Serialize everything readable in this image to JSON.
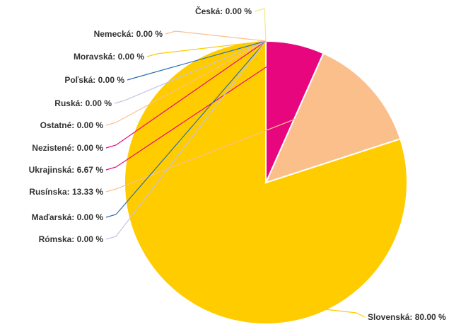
{
  "chart_data": {
    "type": "pie",
    "slices": [
      {
        "label": "Slovenská",
        "value": 80.0,
        "display": "Slovenská: 80.00 %",
        "color": "#FFCC00"
      },
      {
        "label": "Rusínska",
        "value": 13.33,
        "display": "Rusínska: 13.33 %",
        "color": "#FBBF8C"
      },
      {
        "label": "Ukrajinská",
        "value": 6.67,
        "display": "Ukrajinská: 6.67 %",
        "color": "#E8067E"
      },
      {
        "label": "Maďarská",
        "value": 0.0,
        "display": "Maďarská: 0.00 %",
        "color": "#2A6FB5"
      },
      {
        "label": "Rómska",
        "value": 0.0,
        "display": "Rómska: 0.00 %",
        "color": "#C7C2E3"
      },
      {
        "label": "Nezistené",
        "value": 0.0,
        "display": "Nezistené: 0.00 %",
        "color": "#E8067E"
      },
      {
        "label": "Ostatné",
        "value": 0.0,
        "display": "Ostatné: 0.00 %",
        "color": "#FBBF8C"
      },
      {
        "label": "Ruská",
        "value": 0.0,
        "display": "Ruská: 0.00 %",
        "color": "#C7C2E3"
      },
      {
        "label": "Poľská",
        "value": 0.0,
        "display": "Poľská: 0.00 %",
        "color": "#2A6FB5"
      },
      {
        "label": "Moravská",
        "value": 0.0,
        "display": "Moravská: 0.00 %",
        "color": "#FFCC00"
      },
      {
        "label": "Nemecká",
        "value": 0.0,
        "display": "Nemecká: 0.00 %",
        "color": "#FBBF8C"
      },
      {
        "label": "Česká",
        "value": 0.0,
        "display": "Česká: 0.00 %",
        "color": "#F2E88C"
      }
    ]
  }
}
